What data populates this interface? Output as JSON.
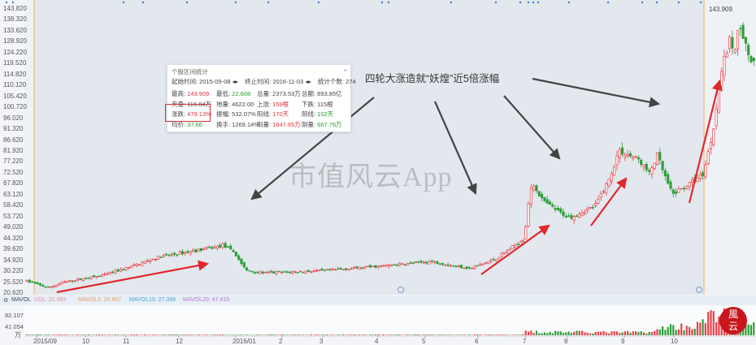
{
  "chart_data": {
    "type": "candlestick",
    "title": "",
    "y_ticks": [
      "143.820",
      "138.320",
      "133.620",
      "128.920",
      "124.220",
      "119.520",
      "114.820",
      "110.120",
      "105.420",
      "100.720",
      "96.020",
      "91.320",
      "86.620",
      "81.920",
      "77.220",
      "72.520",
      "67.820",
      "63.120",
      "58.420",
      "53.720",
      "49.020",
      "44.320",
      "39.620",
      "34.920",
      "30.220",
      "25.520",
      "20.620"
    ],
    "ylim": [
      20.62,
      143.82
    ],
    "x_ticks": [
      "2015/09",
      "10",
      "11",
      "12",
      "2016/01",
      "2",
      "3",
      "4",
      "5",
      "6",
      "7",
      "8",
      "9",
      "10"
    ],
    "price_path": [
      [
        "2015-08-20",
        27
      ],
      [
        "2015-09-08",
        22.6
      ],
      [
        "2015-09-18",
        25
      ],
      [
        "2015-10-15",
        28
      ],
      [
        "2015-11-05",
        32
      ],
      [
        "2015-11-20",
        36
      ],
      [
        "2015-12-20",
        40
      ],
      [
        "2015-12-25",
        41
      ],
      [
        "2015-12-31",
        38
      ],
      [
        "2016-01-08",
        30
      ],
      [
        "2016-01-22",
        29
      ],
      [
        "2016-03-02",
        30
      ],
      [
        "2016-04-04",
        32
      ],
      [
        "2016-05-05",
        34
      ],
      [
        "2016-05-18",
        32
      ],
      [
        "2016-05-28",
        31
      ],
      [
        "2016-06-12",
        35
      ],
      [
        "2016-06-22",
        40
      ],
      [
        "2016-06-30",
        44
      ],
      [
        "2016-07-03",
        60
      ],
      [
        "2016-07-06",
        68
      ],
      [
        "2016-07-14",
        60
      ],
      [
        "2016-07-27",
        55
      ],
      [
        "2016-08-02",
        53
      ],
      [
        "2016-08-16",
        58
      ],
      [
        "2016-08-24",
        70
      ],
      [
        "2016-08-29",
        82
      ],
      [
        "2016-09-10",
        78
      ],
      [
        "2016-09-16",
        72
      ],
      [
        "2016-09-21",
        80
      ],
      [
        "2016-09-26",
        70
      ],
      [
        "2016-09-30",
        63
      ],
      [
        "2016-10-08",
        68
      ],
      [
        "2016-10-13",
        72
      ],
      [
        "2016-10-17",
        90
      ],
      [
        "2016-10-20",
        115
      ],
      [
        "2016-10-24",
        130
      ],
      [
        "2016-10-26",
        125
      ],
      [
        "2016-10-28",
        138
      ],
      [
        "2016-10-31",
        125
      ],
      [
        "2016-11-02",
        120
      ],
      [
        "2016-11-08",
        112
      ]
    ],
    "volume_path": [
      [
        "2015-08-20",
        2
      ],
      [
        "2016-06-28",
        2
      ],
      [
        "2016-07-01",
        12
      ],
      [
        "2016-08-31",
        10
      ],
      [
        "2016-09-20",
        12
      ],
      [
        "2016-09-25",
        30
      ],
      [
        "2016-10-10",
        30
      ],
      [
        "2016-10-18",
        75
      ],
      [
        "2016-10-27",
        55
      ],
      [
        "2016-11-08",
        28
      ]
    ],
    "volume_ticks": [
      "82.107",
      "41.054"
    ],
    "volume_unit": "万",
    "high_label": "143.909",
    "up_color": "#e8404a",
    "down_color": "#2e9e3a"
  },
  "info": {
    "title": "个股区间统计",
    "start": "起始时间: 2015-09-08",
    "end": "终止时间: 2016-11-03",
    "count": "统计个数: 274",
    "rows": [
      [
        {
          "k": "最高: ",
          "v": "143.909",
          "c": "red"
        },
        {
          "k": "最低: ",
          "v": "22.608",
          "c": "green"
        },
        {
          "k": "总量: ",
          "v": "2373.53万",
          "c": ""
        },
        {
          "k": "总额: ",
          "v": "893.85亿",
          "c": ""
        }
      ],
      [
        {
          "k": "天量: ",
          "v": "116.84万",
          "c": ""
        },
        {
          "k": "地量: ",
          "v": "4622.00",
          "c": ""
        },
        {
          "k": "上涨: ",
          "v": "159根",
          "c": "red"
        },
        {
          "k": "下跌: ",
          "v": "115根",
          "c": ""
        }
      ],
      [
        {
          "k": "涨跌: ",
          "v": "479.13%",
          "c": "red"
        },
        {
          "k": "振幅: ",
          "v": "532.07%",
          "c": ""
        },
        {
          "k": "阳线: ",
          "v": "170天",
          "c": "red"
        },
        {
          "k": "阴线: ",
          "v": "102天",
          "c": "green"
        }
      ],
      [
        {
          "k": "均价: ",
          "v": "37.66",
          "c": "green"
        },
        {
          "k": "换手: ",
          "v": "1269.14%",
          "c": ""
        },
        {
          "k": "阳量: ",
          "v": "1647.65万",
          "c": "red"
        },
        {
          "k": "阴量: ",
          "v": "667.76万",
          "c": "green"
        }
      ]
    ]
  },
  "annotation": "四轮大涨造就“妖煌”近5倍涨幅",
  "watermark": "市值风云App",
  "logo_text": "风云",
  "legend": {
    "name": "MAVOL",
    "vol": "VOL: 21.083",
    "ma5": "MAVOL5: 24.607",
    "ma10": "MAVOL10: 27.398",
    "ma20": "MAVOL20: 47.415"
  }
}
